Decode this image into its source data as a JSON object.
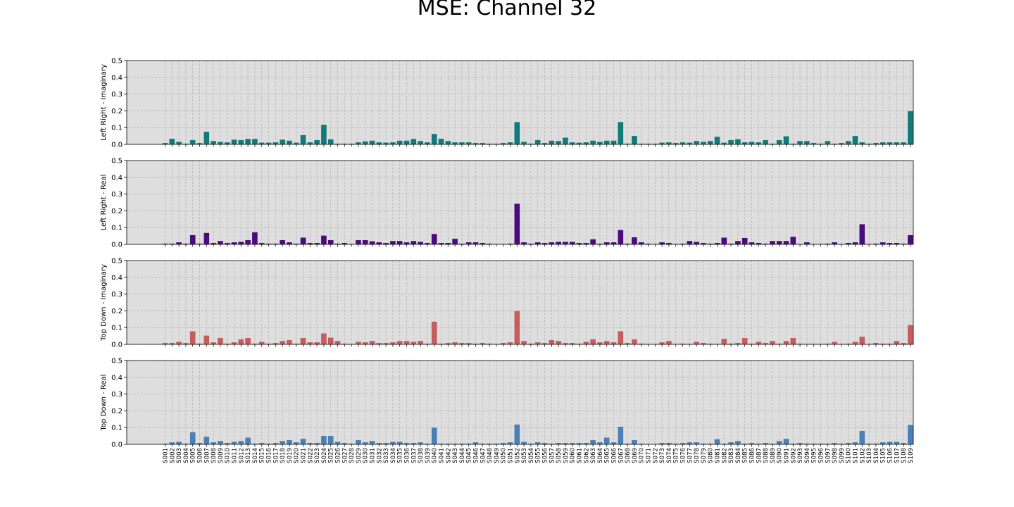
{
  "title": "MSE: Channel 32",
  "chart_data": {
    "type": "bar",
    "title": "MSE: Channel 32",
    "grid": true,
    "categories": [
      "S001",
      "S002",
      "S003",
      "S004",
      "S005",
      "S006",
      "S007",
      "S008",
      "S009",
      "S010",
      "S011",
      "S012",
      "S013",
      "S014",
      "S015",
      "S016",
      "S017",
      "S018",
      "S019",
      "S020",
      "S021",
      "S022",
      "S023",
      "S024",
      "S025",
      "S026",
      "S027",
      "S028",
      "S029",
      "S030",
      "S031",
      "S032",
      "S033",
      "S034",
      "S035",
      "S036",
      "S037",
      "S038",
      "S039",
      "S040",
      "S041",
      "S042",
      "S043",
      "S044",
      "S045",
      "S046",
      "S047",
      "S048",
      "S049",
      "S050",
      "S051",
      "S052",
      "S053",
      "S054",
      "S055",
      "S056",
      "S057",
      "S058",
      "S059",
      "S060",
      "S061",
      "S062",
      "S063",
      "S064",
      "S065",
      "S066",
      "S067",
      "S068",
      "S069",
      "S070",
      "S071",
      "S072",
      "S073",
      "S074",
      "S075",
      "S076",
      "S077",
      "S078",
      "S079",
      "S080",
      "S081",
      "S082",
      "S083",
      "S084",
      "S085",
      "S086",
      "S087",
      "S088",
      "S089",
      "S090",
      "S091",
      "S092",
      "S093",
      "S094",
      "S095",
      "S096",
      "S097",
      "S098",
      "S099",
      "S100",
      "S101",
      "S102",
      "S103",
      "S104",
      "S105",
      "S106",
      "S107",
      "S108",
      "S109"
    ],
    "y_ticks": [
      "0.0",
      "0.1",
      "0.2",
      "0.3",
      "0.4",
      "0.5"
    ],
    "ylim": [
      0,
      0.5
    ],
    "panels": [
      {
        "ylabel": "Left Right - Imaginary",
        "color": "#117a7a",
        "values": [
          0.008,
          0.033,
          0.015,
          0.004,
          0.025,
          0.008,
          0.075,
          0.02,
          0.015,
          0.012,
          0.028,
          0.025,
          0.032,
          0.032,
          0.01,
          0.01,
          0.012,
          0.028,
          0.022,
          0.01,
          0.055,
          0.012,
          0.025,
          0.117,
          0.03,
          0.004,
          0.004,
          0.004,
          0.012,
          0.018,
          0.022,
          0.012,
          0.01,
          0.012,
          0.022,
          0.022,
          0.032,
          0.02,
          0.012,
          0.062,
          0.033,
          0.02,
          0.012,
          0.012,
          0.012,
          0.008,
          0.008,
          0.004,
          0.004,
          0.008,
          0.012,
          0.133,
          0.015,
          0.004,
          0.025,
          0.008,
          0.022,
          0.02,
          0.04,
          0.012,
          0.01,
          0.012,
          0.022,
          0.015,
          0.022,
          0.022,
          0.133,
          0.004,
          0.05,
          0.004,
          0.004,
          0.004,
          0.01,
          0.012,
          0.008,
          0.012,
          0.01,
          0.02,
          0.015,
          0.02,
          0.045,
          0.01,
          0.025,
          0.03,
          0.012,
          0.015,
          0.012,
          0.025,
          0.004,
          0.025,
          0.048,
          0.004,
          0.02,
          0.02,
          0.008,
          0.004,
          0.02,
          0.004,
          0.008,
          0.02,
          0.05,
          0.012,
          0.004,
          0.008,
          0.012,
          0.012,
          0.012,
          0.012,
          0.198
        ]
      },
      {
        "ylabel": "Left Right - Real",
        "color": "#4b0a7d",
        "values": [
          0.004,
          0.004,
          0.012,
          0.004,
          0.055,
          0.004,
          0.068,
          0.008,
          0.02,
          0.008,
          0.012,
          0.015,
          0.025,
          0.072,
          0.008,
          0.004,
          0.004,
          0.025,
          0.012,
          0.004,
          0.04,
          0.008,
          0.008,
          0.052,
          0.025,
          0.004,
          0.008,
          0.002,
          0.025,
          0.025,
          0.018,
          0.012,
          0.008,
          0.02,
          0.02,
          0.012,
          0.02,
          0.015,
          0.008,
          0.062,
          0.008,
          0.008,
          0.033,
          0.004,
          0.012,
          0.012,
          0.008,
          0.004,
          0.002,
          0.002,
          0.004,
          0.242,
          0.012,
          0.004,
          0.012,
          0.008,
          0.012,
          0.015,
          0.015,
          0.015,
          0.008,
          0.008,
          0.03,
          0.004,
          0.012,
          0.012,
          0.085,
          0.004,
          0.042,
          0.012,
          0.004,
          0.002,
          0.012,
          0.008,
          0.002,
          0.004,
          0.02,
          0.015,
          0.008,
          0.004,
          0.008,
          0.04,
          0.004,
          0.02,
          0.038,
          0.012,
          0.008,
          0.004,
          0.02,
          0.02,
          0.02,
          0.045,
          0.002,
          0.012,
          0.002,
          0.002,
          0.004,
          0.012,
          0.002,
          0.008,
          0.012,
          0.12,
          0.002,
          0.004,
          0.012,
          0.008,
          0.008,
          0.004,
          0.055
        ]
      },
      {
        "ylabel": "Top Down - Imaginary",
        "color": "#c75c5c",
        "values": [
          0.008,
          0.008,
          0.015,
          0.008,
          0.078,
          0.004,
          0.052,
          0.012,
          0.038,
          0.004,
          0.012,
          0.03,
          0.038,
          0.004,
          0.015,
          0.004,
          0.008,
          0.02,
          0.025,
          0.004,
          0.038,
          0.012,
          0.012,
          0.065,
          0.04,
          0.02,
          0.004,
          0.002,
          0.015,
          0.012,
          0.02,
          0.008,
          0.008,
          0.012,
          0.02,
          0.02,
          0.015,
          0.02,
          0.004,
          0.135,
          0.004,
          0.008,
          0.012,
          0.008,
          0.008,
          0.004,
          0.008,
          0.004,
          0.002,
          0.008,
          0.012,
          0.198,
          0.02,
          0.004,
          0.012,
          0.008,
          0.025,
          0.02,
          0.008,
          0.008,
          0.004,
          0.015,
          0.03,
          0.012,
          0.02,
          0.012,
          0.078,
          0.008,
          0.03,
          0.004,
          0.002,
          0.002,
          0.012,
          0.02,
          0.002,
          0.004,
          0.002,
          0.015,
          0.008,
          0.004,
          0.002,
          0.033,
          0.004,
          0.008,
          0.038,
          0.004,
          0.015,
          0.008,
          0.02,
          0.004,
          0.02,
          0.038,
          0.004,
          0.002,
          0.002,
          0.002,
          0.004,
          0.015,
          0.002,
          0.004,
          0.015,
          0.045,
          0.002,
          0.008,
          0.004,
          0.004,
          0.02,
          0.008,
          0.115
        ]
      },
      {
        "ylabel": "Top Down - Real",
        "color": "#4a80b5",
        "values": [
          0.004,
          0.012,
          0.015,
          0.004,
          0.072,
          0.008,
          0.045,
          0.012,
          0.02,
          0.008,
          0.015,
          0.02,
          0.04,
          0.004,
          0.008,
          0.004,
          0.008,
          0.02,
          0.025,
          0.012,
          0.033,
          0.008,
          0.008,
          0.05,
          0.05,
          0.015,
          0.008,
          0.004,
          0.025,
          0.012,
          0.02,
          0.008,
          0.008,
          0.015,
          0.015,
          0.008,
          0.008,
          0.012,
          0.004,
          0.1,
          0.004,
          0.004,
          0.004,
          0.004,
          0.004,
          0.012,
          0.004,
          0.004,
          0.004,
          0.008,
          0.012,
          0.118,
          0.015,
          0.004,
          0.012,
          0.008,
          0.004,
          0.008,
          0.008,
          0.008,
          0.008,
          0.008,
          0.025,
          0.012,
          0.04,
          0.012,
          0.105,
          0.004,
          0.025,
          0.004,
          0.002,
          0.002,
          0.008,
          0.008,
          0.004,
          0.008,
          0.012,
          0.012,
          0.004,
          0.004,
          0.03,
          0.004,
          0.012,
          0.02,
          0.004,
          0.008,
          0.004,
          0.008,
          0.004,
          0.02,
          0.033,
          0.004,
          0.008,
          0.004,
          0.004,
          0.004,
          0.004,
          0.008,
          0.004,
          0.008,
          0.012,
          0.08,
          0.004,
          0.004,
          0.012,
          0.015,
          0.015,
          0.008,
          0.115
        ]
      }
    ]
  }
}
